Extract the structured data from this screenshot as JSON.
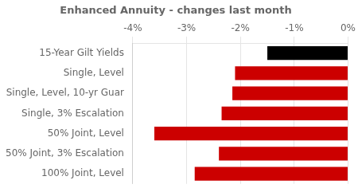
{
  "chart_data": {
    "type": "bar",
    "orientation": "horizontal",
    "title": "Enhanced Annuity - changes last month",
    "categories": [
      "15-Year Gilt Yields",
      "Single, Level",
      "Single, Level, 10-yr Guar",
      "Single, 3% Escalation",
      "50% Joint, Level",
      "50% Joint, 3% Escalation",
      "100% Joint, Level"
    ],
    "values": [
      -1.5,
      -2.1,
      -2.15,
      -2.35,
      -3.6,
      -2.4,
      -2.85
    ],
    "colors": [
      "#000000",
      "#cc0000",
      "#cc0000",
      "#cc0000",
      "#cc0000",
      "#cc0000",
      "#cc0000"
    ],
    "xlim": [
      -4.0,
      0.0
    ],
    "xticks": [
      {
        "value": -4,
        "label": "-4%"
      },
      {
        "value": -3,
        "label": "-3%"
      },
      {
        "value": -2,
        "label": "-2%"
      },
      {
        "value": -1,
        "label": "-1%"
      },
      {
        "value": 0,
        "label": "0%"
      }
    ],
    "grid": true
  }
}
